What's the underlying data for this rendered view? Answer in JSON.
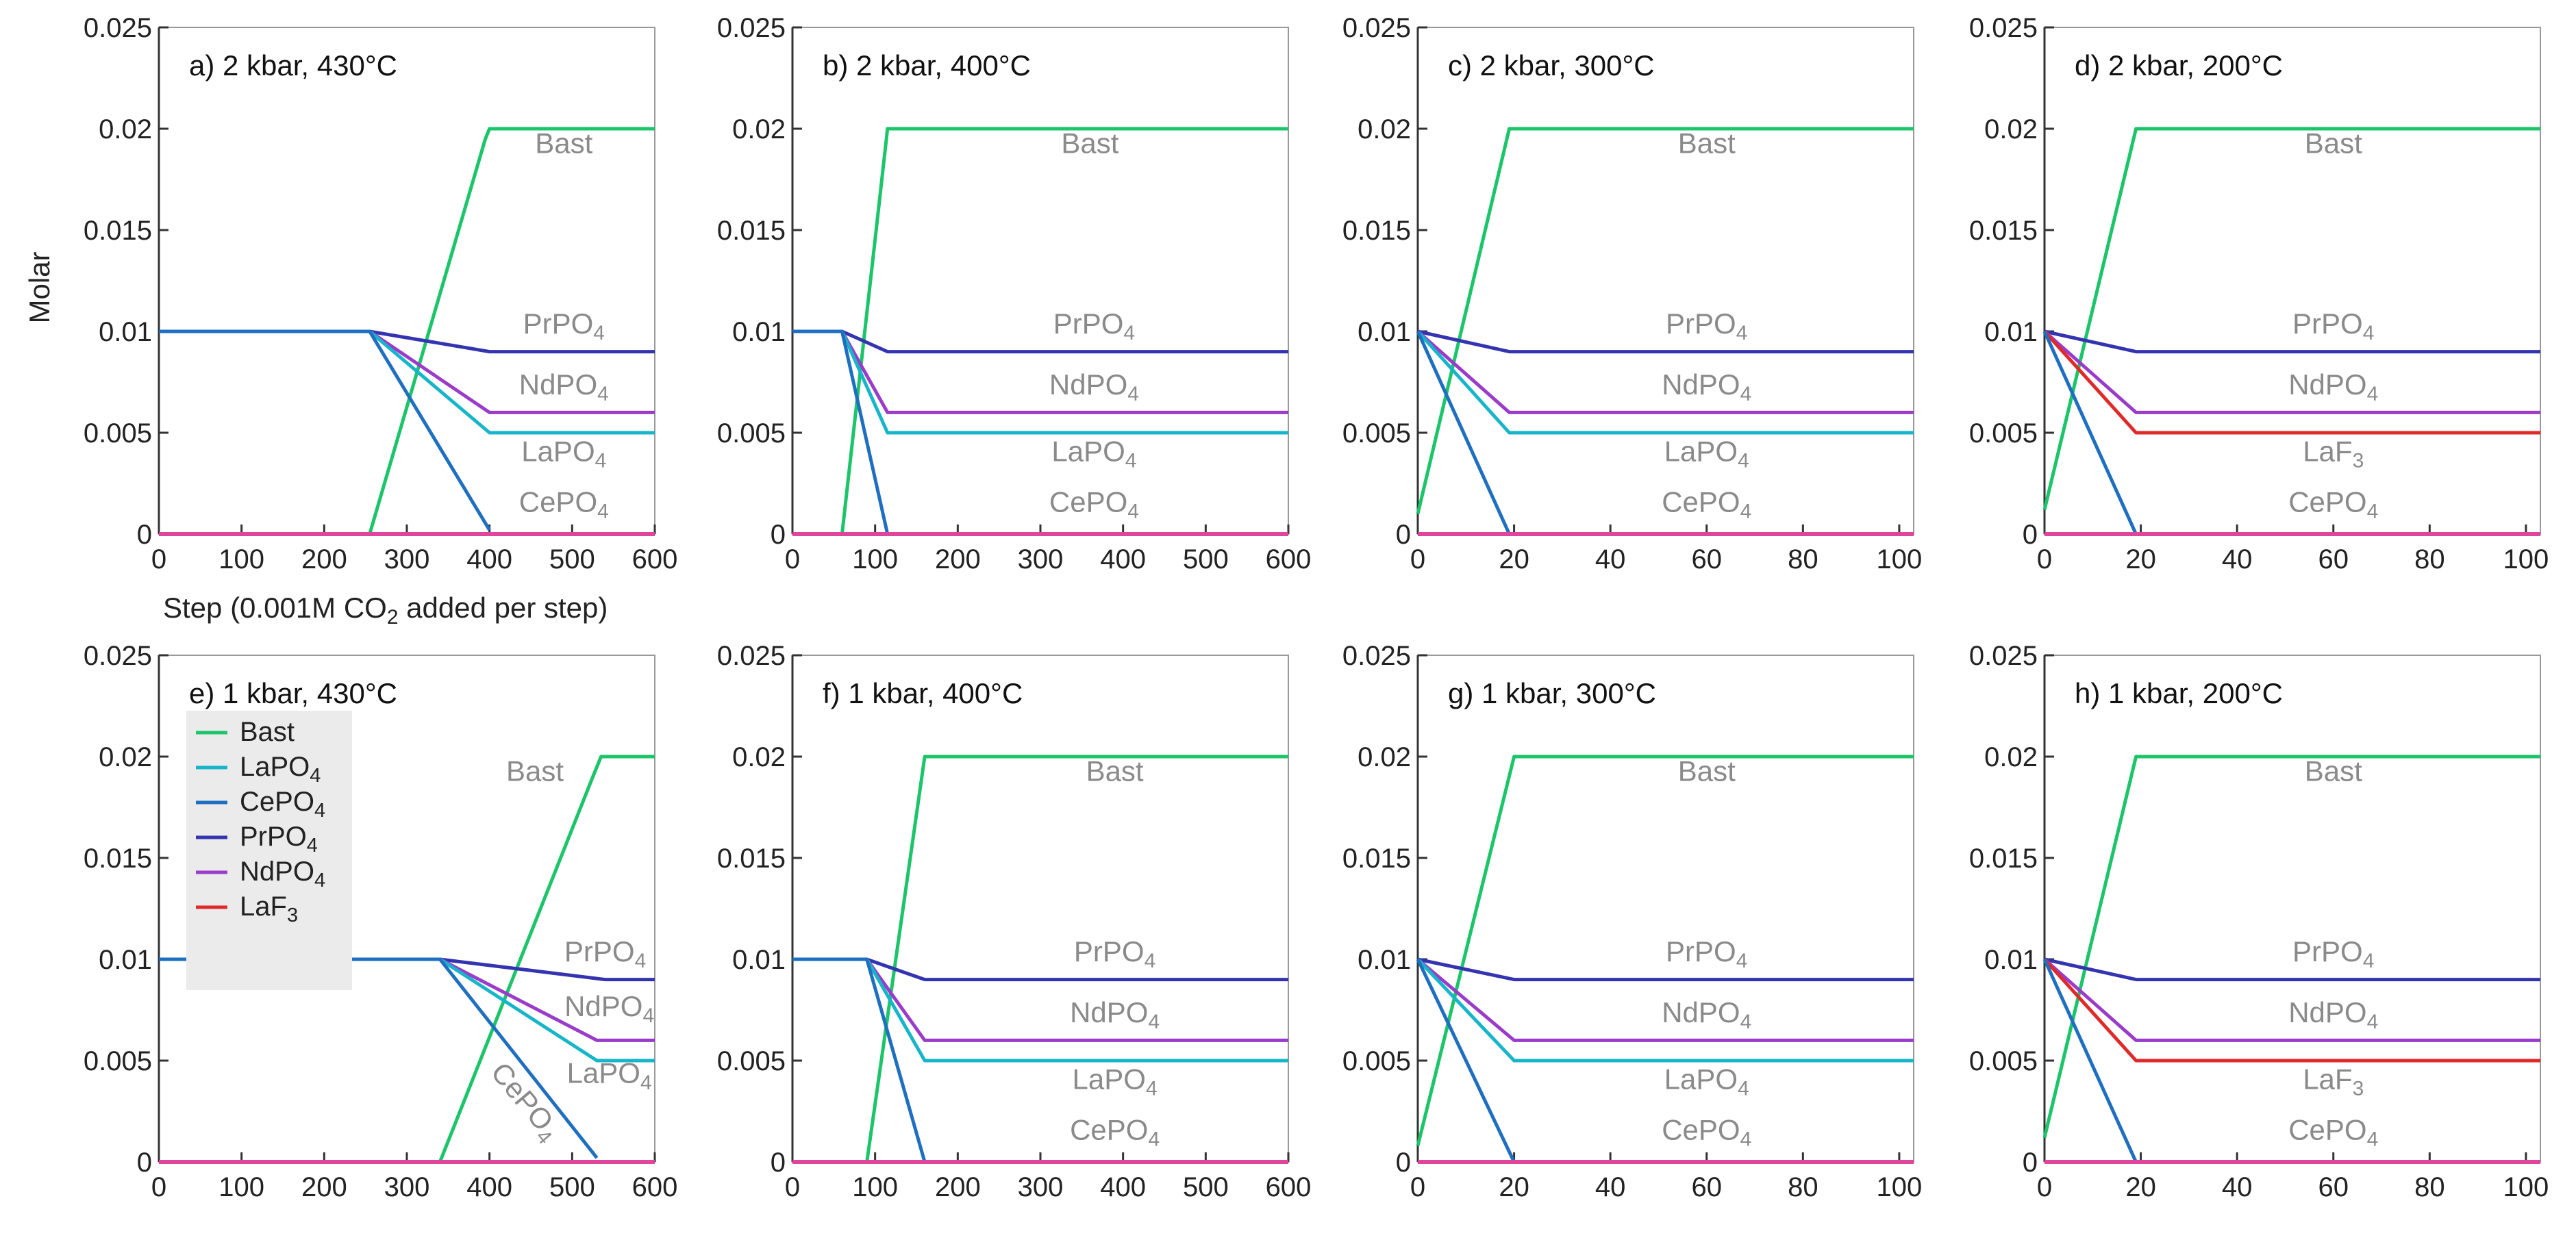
{
  "figure": {
    "ylabel": "Molar",
    "xlabel_parts": [
      "Step (0.001M CO",
      "2",
      " added per step)"
    ]
  },
  "colors": {
    "Bast": "#1cc46a",
    "LaPO4": "#17b5c9",
    "CePO4": "#1f6fc0",
    "PrPO4": "#3534b0",
    "NdPO4": "#9a3cc9",
    "LaF3": "#e02a2a",
    "CeLine": "#e0449c",
    "label": "#8a8a8a",
    "axis": "#333333",
    "frame": "#999999"
  },
  "legend": [
    {
      "key": "Bast",
      "parts": [
        "Bast"
      ]
    },
    {
      "key": "LaPO4",
      "parts": [
        "LaPO",
        "4"
      ]
    },
    {
      "key": "CePO4",
      "parts": [
        "CePO",
        "4"
      ]
    },
    {
      "key": "PrPO4",
      "parts": [
        "PrPO",
        "4"
      ]
    },
    {
      "key": "NdPO4",
      "parts": [
        "NdPO",
        "4"
      ]
    },
    {
      "key": "LaF3",
      "parts": [
        "LaF",
        "3"
      ]
    }
  ],
  "chart_data": [
    {
      "type": "line",
      "title": "a) 2 kbar, 430°C",
      "xlim": [
        0,
        600
      ],
      "xticks": [
        0,
        100,
        200,
        300,
        400,
        500,
        600
      ],
      "ylim": [
        0,
        0.025
      ],
      "yticks": [
        "0",
        "0.005",
        "0.01",
        "0.015",
        "0.02",
        "0.025"
      ],
      "series": [
        {
          "name": "Bast",
          "x": [
            0,
            255,
            395,
            400,
            600
          ],
          "y": [
            0,
            0,
            0.0195,
            0.02,
            0.02
          ]
        },
        {
          "name": "PrPO4",
          "x": [
            0,
            255,
            400,
            600
          ],
          "y": [
            0.01,
            0.01,
            0.009,
            0.009
          ]
        },
        {
          "name": "NdPO4",
          "x": [
            0,
            255,
            400,
            600
          ],
          "y": [
            0.01,
            0.01,
            0.006,
            0.006
          ]
        },
        {
          "name": "LaPO4",
          "x": [
            0,
            255,
            400,
            600
          ],
          "y": [
            0.01,
            0.01,
            0.005,
            0.005
          ]
        },
        {
          "name": "CePO4",
          "x": [
            0,
            255,
            400
          ],
          "y": [
            0.01,
            0.01,
            0.0002
          ]
        },
        {
          "name": "CeLine",
          "x": [
            0,
            600
          ],
          "y": [
            0,
            0
          ]
        }
      ],
      "labels": [
        {
          "parts": [
            "Bast"
          ],
          "x": 490,
          "y": 0.0188
        },
        {
          "parts": [
            "PrPO",
            "4"
          ],
          "x": 490,
          "y": 0.0099
        },
        {
          "parts": [
            "NdPO",
            "4"
          ],
          "x": 490,
          "y": 0.0069
        },
        {
          "parts": [
            "LaPO",
            "4"
          ],
          "x": 490,
          "y": 0.0036
        },
        {
          "parts": [
            "CePO",
            "4"
          ],
          "x": 490,
          "y": 0.0011
        }
      ]
    },
    {
      "type": "line",
      "title": "b) 2 kbar, 400°C",
      "xlim": [
        0,
        600
      ],
      "xticks": [
        0,
        100,
        200,
        300,
        400,
        500,
        600
      ],
      "ylim": [
        0,
        0.025
      ],
      "yticks": [
        "0",
        "0.005",
        "0.01",
        "0.015",
        "0.02",
        "0.025"
      ],
      "series": [
        {
          "name": "Bast",
          "x": [
            0,
            60,
            115,
            600
          ],
          "y": [
            0,
            0,
            0.02,
            0.02
          ]
        },
        {
          "name": "PrPO4",
          "x": [
            0,
            60,
            115,
            600
          ],
          "y": [
            0.01,
            0.01,
            0.009,
            0.009
          ]
        },
        {
          "name": "NdPO4",
          "x": [
            0,
            60,
            115,
            600
          ],
          "y": [
            0.01,
            0.01,
            0.006,
            0.006
          ]
        },
        {
          "name": "LaPO4",
          "x": [
            0,
            60,
            115,
            600
          ],
          "y": [
            0.01,
            0.01,
            0.005,
            0.005
          ]
        },
        {
          "name": "CePO4",
          "x": [
            0,
            60,
            115
          ],
          "y": [
            0.01,
            0.01,
            0
          ]
        },
        {
          "name": "CeLine",
          "x": [
            0,
            600
          ],
          "y": [
            0,
            0
          ]
        }
      ],
      "labels": [
        {
          "parts": [
            "Bast"
          ],
          "x": 360,
          "y": 0.0188
        },
        {
          "parts": [
            "PrPO",
            "4"
          ],
          "x": 365,
          "y": 0.0099
        },
        {
          "parts": [
            "NdPO",
            "4"
          ],
          "x": 365,
          "y": 0.0069
        },
        {
          "parts": [
            "LaPO",
            "4"
          ],
          "x": 365,
          "y": 0.0036
        },
        {
          "parts": [
            "CePO",
            "4"
          ],
          "x": 365,
          "y": 0.0011
        }
      ]
    },
    {
      "type": "line",
      "title": "c) 2 kbar, 300°C",
      "xlim": [
        0,
        103
      ],
      "xticks": [
        0,
        20,
        40,
        60,
        80,
        100
      ],
      "ylim": [
        0,
        0.025
      ],
      "yticks": [
        "0",
        "0.005",
        "0.01",
        "0.015",
        "0.02",
        "0.025"
      ],
      "series": [
        {
          "name": "Bast",
          "x": [
            0,
            19,
            103
          ],
          "y": [
            0.001,
            0.02,
            0.02
          ]
        },
        {
          "name": "PrPO4",
          "x": [
            0,
            19,
            103
          ],
          "y": [
            0.01,
            0.009,
            0.009
          ]
        },
        {
          "name": "NdPO4",
          "x": [
            0,
            19,
            103
          ],
          "y": [
            0.01,
            0.006,
            0.006
          ]
        },
        {
          "name": "LaPO4",
          "x": [
            0,
            19,
            103
          ],
          "y": [
            0.01,
            0.005,
            0.005
          ]
        },
        {
          "name": "CePO4",
          "x": [
            0,
            19
          ],
          "y": [
            0.01,
            0
          ]
        },
        {
          "name": "CeLine",
          "x": [
            0,
            103
          ],
          "y": [
            0,
            0
          ]
        }
      ],
      "labels": [
        {
          "parts": [
            "Bast"
          ],
          "x": 60,
          "y": 0.0188
        },
        {
          "parts": [
            "PrPO",
            "4"
          ],
          "x": 60,
          "y": 0.0099
        },
        {
          "parts": [
            "NdPO",
            "4"
          ],
          "x": 60,
          "y": 0.0069
        },
        {
          "parts": [
            "LaPO",
            "4"
          ],
          "x": 60,
          "y": 0.0036
        },
        {
          "parts": [
            "CePO",
            "4"
          ],
          "x": 60,
          "y": 0.0011
        }
      ]
    },
    {
      "type": "line",
      "title": "d) 2 kbar, 200°C",
      "xlim": [
        0,
        103
      ],
      "xticks": [
        0,
        20,
        40,
        60,
        80,
        100
      ],
      "ylim": [
        0,
        0.025
      ],
      "yticks": [
        "0",
        "0.005",
        "0.01",
        "0.015",
        "0.02",
        "0.025"
      ],
      "series": [
        {
          "name": "Bast",
          "x": [
            0,
            19,
            103
          ],
          "y": [
            0.0012,
            0.02,
            0.02
          ]
        },
        {
          "name": "PrPO4",
          "x": [
            0,
            19,
            103
          ],
          "y": [
            0.01,
            0.009,
            0.009
          ]
        },
        {
          "name": "NdPO4",
          "x": [
            0,
            19,
            103
          ],
          "y": [
            0.01,
            0.006,
            0.006
          ]
        },
        {
          "name": "LaF3",
          "x": [
            0,
            19,
            103
          ],
          "y": [
            0.01,
            0.005,
            0.005
          ]
        },
        {
          "name": "CePO4",
          "x": [
            0,
            19
          ],
          "y": [
            0.01,
            0
          ]
        },
        {
          "name": "CeLine",
          "x": [
            0,
            103
          ],
          "y": [
            0,
            0
          ]
        }
      ],
      "labels": [
        {
          "parts": [
            "Bast"
          ],
          "x": 60,
          "y": 0.0188
        },
        {
          "parts": [
            "PrPO",
            "4"
          ],
          "x": 60,
          "y": 0.0099
        },
        {
          "parts": [
            "NdPO",
            "4"
          ],
          "x": 60,
          "y": 0.0069
        },
        {
          "parts": [
            "LaF",
            "3"
          ],
          "x": 60,
          "y": 0.0036
        },
        {
          "parts": [
            "CePO",
            "4"
          ],
          "x": 60,
          "y": 0.0011
        }
      ]
    },
    {
      "type": "line",
      "title": "e) 1 kbar, 430°C",
      "xlim": [
        0,
        600
      ],
      "xticks": [
        0,
        100,
        200,
        300,
        400,
        500,
        600
      ],
      "ylim": [
        0,
        0.025
      ],
      "yticks": [
        "0",
        "0.005",
        "0.01",
        "0.015",
        "0.02",
        "0.025"
      ],
      "series": [
        {
          "name": "Bast",
          "x": [
            0,
            340,
            525,
            535,
            600
          ],
          "y": [
            0,
            0,
            0.019,
            0.02,
            0.02
          ]
        },
        {
          "name": "PrPO4",
          "x": [
            0,
            340,
            540,
            600
          ],
          "y": [
            0.01,
            0.01,
            0.009,
            0.009
          ]
        },
        {
          "name": "NdPO4",
          "x": [
            0,
            340,
            530,
            600
          ],
          "y": [
            0.01,
            0.01,
            0.006,
            0.006
          ]
        },
        {
          "name": "LaPO4",
          "x": [
            0,
            340,
            530,
            600
          ],
          "y": [
            0.01,
            0.01,
            0.005,
            0.005
          ]
        },
        {
          "name": "CePO4",
          "x": [
            0,
            340,
            530
          ],
          "y": [
            0.01,
            0.01,
            0.0002
          ]
        },
        {
          "name": "CeLine",
          "x": [
            0,
            600
          ],
          "y": [
            0,
            0
          ]
        }
      ],
      "labels": [
        {
          "parts": [
            "Bast"
          ],
          "x": 455,
          "y": 0.0188
        },
        {
          "parts": [
            "PrPO",
            "4"
          ],
          "x": 540,
          "y": 0.0099
        },
        {
          "parts": [
            "NdPO",
            "4"
          ],
          "x": 545,
          "y": 0.0072
        },
        {
          "parts": [
            "LaPO",
            "4"
          ],
          "x": 545,
          "y": 0.0039
        },
        {
          "parts": [
            "CePO",
            "4"
          ],
          "x": 435,
          "y": 0.0027,
          "rotate": 50
        }
      ]
    },
    {
      "type": "line",
      "title": "f) 1 kbar, 400°C",
      "xlim": [
        0,
        600
      ],
      "xticks": [
        0,
        100,
        200,
        300,
        400,
        500,
        600
      ],
      "ylim": [
        0,
        0.025
      ],
      "yticks": [
        "0",
        "0.005",
        "0.01",
        "0.015",
        "0.02",
        "0.025"
      ],
      "series": [
        {
          "name": "Bast",
          "x": [
            0,
            90,
            160,
            600
          ],
          "y": [
            0,
            0,
            0.02,
            0.02
          ]
        },
        {
          "name": "PrPO4",
          "x": [
            0,
            90,
            160,
            600
          ],
          "y": [
            0.01,
            0.01,
            0.009,
            0.009
          ]
        },
        {
          "name": "NdPO4",
          "x": [
            0,
            90,
            160,
            600
          ],
          "y": [
            0.01,
            0.01,
            0.006,
            0.006
          ]
        },
        {
          "name": "LaPO4",
          "x": [
            0,
            90,
            160,
            600
          ],
          "y": [
            0.01,
            0.01,
            0.005,
            0.005
          ]
        },
        {
          "name": "CePO4",
          "x": [
            0,
            90,
            160
          ],
          "y": [
            0.01,
            0.01,
            0
          ]
        },
        {
          "name": "CeLine",
          "x": [
            0,
            600
          ],
          "y": [
            0,
            0
          ]
        }
      ],
      "labels": [
        {
          "parts": [
            "Bast"
          ],
          "x": 390,
          "y": 0.0188
        },
        {
          "parts": [
            "PrPO",
            "4"
          ],
          "x": 390,
          "y": 0.0099
        },
        {
          "parts": [
            "NdPO",
            "4"
          ],
          "x": 390,
          "y": 0.0069
        },
        {
          "parts": [
            "LaPO",
            "4"
          ],
          "x": 390,
          "y": 0.0036
        },
        {
          "parts": [
            "CePO",
            "4"
          ],
          "x": 390,
          "y": 0.0011
        }
      ]
    },
    {
      "type": "line",
      "title": "g) 1 kbar, 300°C",
      "xlim": [
        0,
        103
      ],
      "xticks": [
        0,
        20,
        40,
        60,
        80,
        100
      ],
      "ylim": [
        0,
        0.025
      ],
      "yticks": [
        "0",
        "0.005",
        "0.01",
        "0.015",
        "0.02",
        "0.025"
      ],
      "series": [
        {
          "name": "Bast",
          "x": [
            0,
            20,
            103
          ],
          "y": [
            0.0008,
            0.02,
            0.02
          ]
        },
        {
          "name": "PrPO4",
          "x": [
            0,
            20,
            103
          ],
          "y": [
            0.01,
            0.009,
            0.009
          ]
        },
        {
          "name": "NdPO4",
          "x": [
            0,
            20,
            103
          ],
          "y": [
            0.01,
            0.006,
            0.006
          ]
        },
        {
          "name": "LaPO4",
          "x": [
            0,
            20,
            103
          ],
          "y": [
            0.01,
            0.005,
            0.005
          ]
        },
        {
          "name": "CePO4",
          "x": [
            0,
            20
          ],
          "y": [
            0.01,
            0
          ]
        },
        {
          "name": "CeLine",
          "x": [
            0,
            103
          ],
          "y": [
            0,
            0
          ]
        }
      ],
      "labels": [
        {
          "parts": [
            "Bast"
          ],
          "x": 60,
          "y": 0.0188
        },
        {
          "parts": [
            "PrPO",
            "4"
          ],
          "x": 60,
          "y": 0.0099
        },
        {
          "parts": [
            "NdPO",
            "4"
          ],
          "x": 60,
          "y": 0.0069
        },
        {
          "parts": [
            "LaPO",
            "4"
          ],
          "x": 60,
          "y": 0.0036
        },
        {
          "parts": [
            "CePO",
            "4"
          ],
          "x": 60,
          "y": 0.0011
        }
      ]
    },
    {
      "type": "line",
      "title": "h) 1 kbar, 200°C",
      "xlim": [
        0,
        103
      ],
      "xticks": [
        0,
        20,
        40,
        60,
        80,
        100
      ],
      "ylim": [
        0,
        0.025
      ],
      "yticks": [
        "0",
        "0.005",
        "0.01",
        "0.015",
        "0.02",
        "0.025"
      ],
      "series": [
        {
          "name": "Bast",
          "x": [
            0,
            19,
            103
          ],
          "y": [
            0.0012,
            0.02,
            0.02
          ]
        },
        {
          "name": "PrPO4",
          "x": [
            0,
            19,
            103
          ],
          "y": [
            0.01,
            0.009,
            0.009
          ]
        },
        {
          "name": "NdPO4",
          "x": [
            0,
            19,
            103
          ],
          "y": [
            0.01,
            0.006,
            0.006
          ]
        },
        {
          "name": "LaF3",
          "x": [
            0,
            19,
            103
          ],
          "y": [
            0.01,
            0.005,
            0.005
          ]
        },
        {
          "name": "CePO4",
          "x": [
            0,
            19
          ],
          "y": [
            0.01,
            0
          ]
        },
        {
          "name": "CeLine",
          "x": [
            0,
            103
          ],
          "y": [
            0,
            0
          ]
        }
      ],
      "labels": [
        {
          "parts": [
            "Bast"
          ],
          "x": 60,
          "y": 0.0188
        },
        {
          "parts": [
            "PrPO",
            "4"
          ],
          "x": 60,
          "y": 0.0099
        },
        {
          "parts": [
            "NdPO",
            "4"
          ],
          "x": 60,
          "y": 0.0069
        },
        {
          "parts": [
            "LaF",
            "3"
          ],
          "x": 60,
          "y": 0.0036
        },
        {
          "parts": [
            "CePO",
            "4"
          ],
          "x": 60,
          "y": 0.0011
        }
      ]
    }
  ]
}
